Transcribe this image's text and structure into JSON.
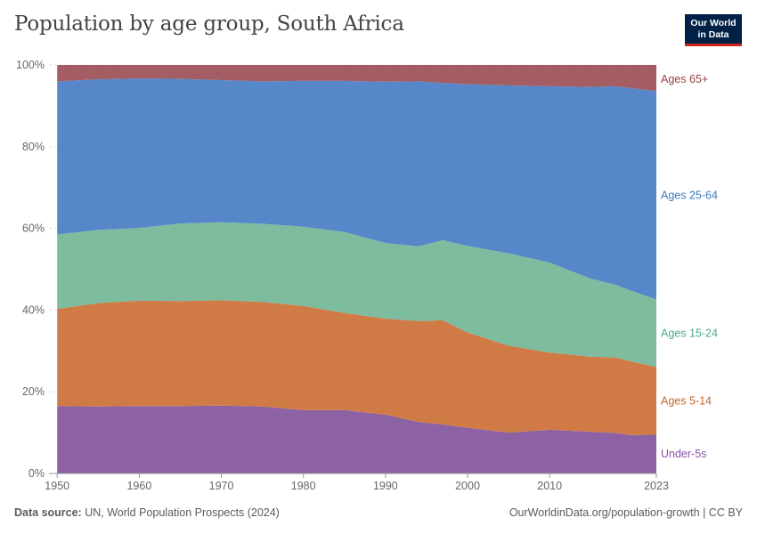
{
  "header": {
    "title": "Population by age group, South Africa",
    "logo_line1": "Our World",
    "logo_line2": "in Data"
  },
  "footer": {
    "source_label": "Data source:",
    "source_text": "UN, World Population Prospects (2024)",
    "right_text": "OurWorldinData.org/population-growth | CC BY"
  },
  "chart_data": {
    "type": "area",
    "stacked": true,
    "x": [
      1950,
      1955,
      1960,
      1965,
      1970,
      1975,
      1980,
      1985,
      1990,
      1994,
      1997,
      2000,
      2005,
      2010,
      2015,
      2018,
      2020,
      2023
    ],
    "series": [
      {
        "name": "Under-5s",
        "color": "#8c62a4",
        "values": [
          16.5,
          16.4,
          16.5,
          16.5,
          16.6,
          16.4,
          15.5,
          15.5,
          14.4,
          12.6,
          12.0,
          11.2,
          10.0,
          10.7,
          10.2,
          9.9,
          9.4,
          9.5
        ]
      },
      {
        "name": "Ages 5-14",
        "color": "#d07a45",
        "values": [
          23.8,
          25.3,
          25.8,
          25.7,
          25.8,
          25.6,
          25.5,
          23.8,
          23.5,
          24.7,
          25.5,
          23.3,
          21.3,
          18.9,
          18.4,
          18.5,
          18.0,
          16.6
        ]
      },
      {
        "name": "Ages 15-24",
        "color": "#7dbc9e",
        "values": [
          18.2,
          17.9,
          17.8,
          19.0,
          19.1,
          19.1,
          19.4,
          19.8,
          18.5,
          18.3,
          19.6,
          21.2,
          22.6,
          22.0,
          19.1,
          17.8,
          17.3,
          16.5
        ]
      },
      {
        "name": "Ages 25-64",
        "color": "#5688c9",
        "values": [
          37.5,
          36.9,
          36.6,
          35.4,
          34.8,
          34.9,
          35.7,
          37.0,
          39.5,
          40.4,
          38.5,
          39.6,
          41.1,
          43.2,
          46.9,
          48.6,
          49.6,
          51.0
        ]
      },
      {
        "name": "Ages 65+",
        "color": "#a35d63",
        "values": [
          4.0,
          3.5,
          3.3,
          3.4,
          3.7,
          4.0,
          3.9,
          3.9,
          4.1,
          4.0,
          4.4,
          4.7,
          5.0,
          5.2,
          5.4,
          5.2,
          5.7,
          6.4
        ]
      }
    ],
    "series_labels": [
      "Under-5s",
      "Ages 5-14",
      "Ages 15-24",
      "Ages 25-64",
      "Ages 65+"
    ],
    "label_colors": [
      "#8c4fa8",
      "#c2652c",
      "#4fa888",
      "#3e76bf",
      "#994045"
    ],
    "xlim": [
      1949,
      2023
    ],
    "ylim": [
      0,
      100
    ],
    "y_ticks": [
      "0%",
      "20%",
      "40%",
      "60%",
      "80%",
      "100%"
    ],
    "x_ticks": [
      "1950",
      "1960",
      "1970",
      "1980",
      "1990",
      "2000",
      "2010",
      "2023"
    ],
    "grid": true,
    "legend": "right"
  }
}
